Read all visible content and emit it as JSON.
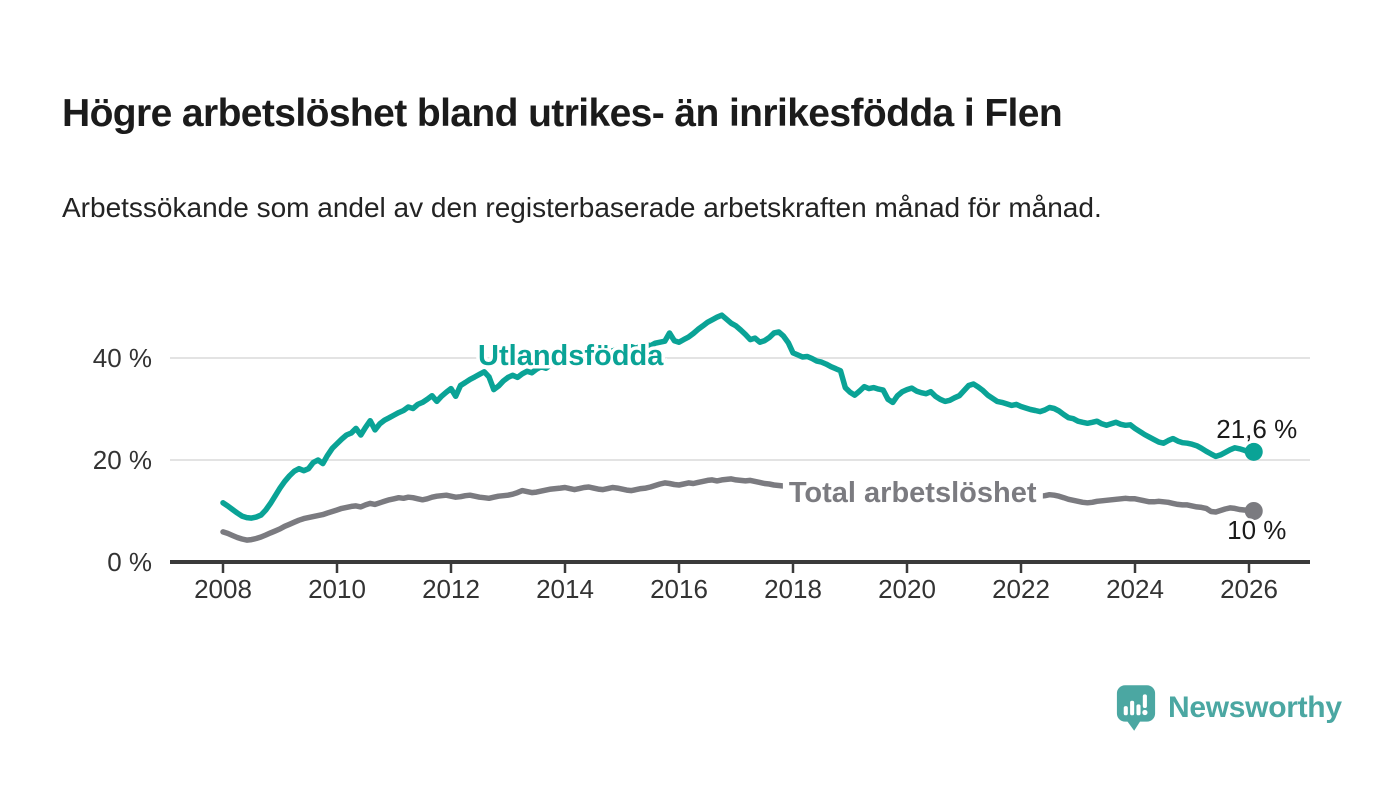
{
  "header": {
    "title": "Högre arbetslöshet bland utrikes- än inrikesfödda i Flen",
    "subtitle": "Arbetssökande som andel av den registerbaserade arbetskraften månad för månad."
  },
  "chart_data": {
    "type": "line",
    "title": "Högre arbetslöshet bland utrikes- än inrikesfödda i Flen",
    "xlabel": "",
    "ylabel": "",
    "x_start_year": 2008,
    "points_per_year": 12,
    "xlim": [
      2007.07,
      2027.07
    ],
    "ylim": [
      0,
      52
    ],
    "grid": true,
    "legend": "inline-labels",
    "x_axis": {
      "tick_years": [
        2008,
        2010,
        2012,
        2014,
        2016,
        2018,
        2020,
        2022,
        2024,
        2026
      ],
      "tick_labels": [
        "2008",
        "2010",
        "2012",
        "2014",
        "2016",
        "2018",
        "2020",
        "2022",
        "2024",
        "2026"
      ]
    },
    "y_axis": {
      "ticks": [
        {
          "value": 0,
          "label": "0 %"
        },
        {
          "value": 20,
          "label": "20 %"
        },
        {
          "value": 40,
          "label": "40 %"
        }
      ]
    },
    "series": [
      {
        "name": "Utlandsfödda",
        "color": "#0aa396",
        "inline_label": {
          "text": "Utlandsfödda",
          "x": 2014.1,
          "y": 40.6,
          "opaque_bg": false
        },
        "end_label": "21,6 %",
        "end_value": 21.6,
        "values": [
          11.6,
          11.0,
          10.3,
          9.6,
          9.0,
          8.7,
          8.6,
          8.8,
          9.2,
          10.2,
          11.5,
          13.0,
          14.5,
          15.8,
          16.9,
          17.8,
          18.3,
          17.9,
          18.3,
          19.5,
          20.0,
          19.3,
          20.9,
          22.3,
          23.2,
          24.1,
          24.9,
          25.3,
          26.2,
          24.9,
          26.4,
          27.7,
          25.9,
          27.1,
          27.8,
          28.3,
          28.8,
          29.3,
          29.7,
          30.4,
          30.1,
          30.9,
          31.3,
          31.9,
          32.6,
          31.5,
          32.5,
          33.3,
          34.0,
          32.5,
          34.6,
          35.2,
          35.8,
          36.3,
          36.8,
          37.3,
          36.3,
          33.8,
          34.5,
          35.5,
          36.2,
          36.6,
          36.2,
          36.9,
          37.4,
          37.1,
          37.8,
          38.3,
          38.0,
          38.6,
          39.0,
          39.4,
          39.2,
          39.6,
          40.1,
          39.8,
          40.3,
          40.7,
          40.4,
          40.9,
          41.3,
          41.0,
          41.4,
          41.7,
          41.5,
          41.9,
          42.2,
          41.9,
          42.4,
          42.7,
          42.4,
          42.9,
          43.1,
          43.3,
          44.9,
          43.4,
          43.1,
          43.6,
          44.1,
          44.8,
          45.6,
          46.3,
          47.0,
          47.5,
          48.0,
          48.4,
          47.6,
          46.8,
          46.3,
          45.5,
          44.6,
          43.6,
          43.9,
          43.1,
          43.4,
          44.0,
          44.9,
          45.1,
          44.3,
          43.0,
          41.0,
          40.6,
          40.2,
          40.3,
          39.9,
          39.4,
          39.2,
          38.8,
          38.3,
          37.9,
          37.5,
          34.2,
          33.3,
          32.7,
          33.5,
          34.4,
          34.0,
          34.2,
          33.9,
          33.7,
          31.9,
          31.3,
          32.6,
          33.4,
          33.8,
          34.1,
          33.5,
          33.2,
          33.0,
          33.4,
          32.5,
          31.9,
          31.5,
          31.7,
          32.2,
          32.6,
          33.6,
          34.6,
          34.9,
          34.3,
          33.6,
          32.7,
          32.1,
          31.5,
          31.3,
          31.0,
          30.7,
          30.9,
          30.5,
          30.2,
          29.9,
          29.7,
          29.5,
          29.8,
          30.3,
          30.1,
          29.6,
          28.9,
          28.3,
          28.1,
          27.6,
          27.4,
          27.2,
          27.4,
          27.6,
          27.1,
          26.8,
          27.1,
          27.4,
          27.0,
          26.8,
          26.9,
          26.2,
          25.6,
          25.0,
          24.5,
          24.0,
          23.5,
          23.3,
          23.8,
          24.2,
          23.7,
          23.4,
          23.3,
          23.1,
          22.8,
          22.3,
          21.7,
          21.2,
          20.7,
          21.0,
          21.5,
          22.0,
          22.4,
          22.2,
          21.9,
          21.5,
          21.6
        ]
      },
      {
        "name": "Total arbetslöshet",
        "color": "#7b7b80",
        "inline_label": {
          "text": "Total arbetslöshet",
          "x": 2020.1,
          "y": 13.7,
          "opaque_bg": true
        },
        "end_label": "10 %",
        "end_value": 10.0,
        "values": [
          5.9,
          5.6,
          5.2,
          4.8,
          4.5,
          4.3,
          4.4,
          4.6,
          4.9,
          5.3,
          5.7,
          6.1,
          6.5,
          7.0,
          7.4,
          7.8,
          8.2,
          8.5,
          8.7,
          8.9,
          9.1,
          9.3,
          9.6,
          9.9,
          10.2,
          10.5,
          10.7,
          10.9,
          11.0,
          10.8,
          11.2,
          11.5,
          11.3,
          11.6,
          11.9,
          12.2,
          12.4,
          12.6,
          12.5,
          12.7,
          12.6,
          12.4,
          12.2,
          12.4,
          12.7,
          12.9,
          13.0,
          13.1,
          12.9,
          12.7,
          12.8,
          13.0,
          13.1,
          12.9,
          12.7,
          12.6,
          12.5,
          12.7,
          12.9,
          13.0,
          13.1,
          13.3,
          13.6,
          14.0,
          13.8,
          13.6,
          13.7,
          13.9,
          14.1,
          14.3,
          14.4,
          14.5,
          14.6,
          14.4,
          14.2,
          14.4,
          14.6,
          14.7,
          14.5,
          14.3,
          14.2,
          14.4,
          14.6,
          14.5,
          14.3,
          14.1,
          14.0,
          14.2,
          14.4,
          14.5,
          14.7,
          15.0,
          15.3,
          15.5,
          15.4,
          15.2,
          15.1,
          15.3,
          15.5,
          15.4,
          15.6,
          15.8,
          16.0,
          16.1,
          15.9,
          16.1,
          16.2,
          16.3,
          16.1,
          16.0,
          15.9,
          16.0,
          15.8,
          15.6,
          15.4,
          15.3,
          15.1,
          15.0,
          14.9,
          14.8,
          14.7,
          14.6,
          14.5,
          14.6,
          14.4,
          14.3,
          14.2,
          14.1,
          14.0,
          13.9,
          13.8,
          13.9,
          13.8,
          13.7,
          13.6,
          13.7,
          13.5,
          13.4,
          13.3,
          13.4,
          13.2,
          13.1,
          13.3,
          13.5,
          13.7,
          13.9,
          14.2,
          14.5,
          14.4,
          14.3,
          14.1,
          14.0,
          13.9,
          13.8,
          13.9,
          14.0,
          14.1,
          14.2,
          14.0,
          13.8,
          13.6,
          13.4,
          13.2,
          13.0,
          12.9,
          12.8,
          12.9,
          13.0,
          13.1,
          13.0,
          12.9,
          12.8,
          12.9,
          13.0,
          13.2,
          13.1,
          12.9,
          12.6,
          12.3,
          12.1,
          11.9,
          11.7,
          11.6,
          11.7,
          11.9,
          12.0,
          12.1,
          12.2,
          12.3,
          12.4,
          12.5,
          12.4,
          12.4,
          12.2,
          12.0,
          11.8,
          11.8,
          11.9,
          11.8,
          11.7,
          11.5,
          11.3,
          11.2,
          11.2,
          11.0,
          10.8,
          10.7,
          10.5,
          9.9,
          9.8,
          10.1,
          10.4,
          10.6,
          10.5,
          10.3,
          10.2,
          10.1,
          10.0
        ]
      }
    ]
  },
  "footer": {
    "brand": "Newsworthy"
  },
  "colors": {
    "series_foreign_born": "#0aa396",
    "series_total": "#7b7b80",
    "axis": "#3a3a3a",
    "gridline": "#e3e3e3",
    "tick_label": "#333333",
    "value_label": "#1a1a1a",
    "brand_teal": "#4ba7a2",
    "background": "#ffffff"
  }
}
